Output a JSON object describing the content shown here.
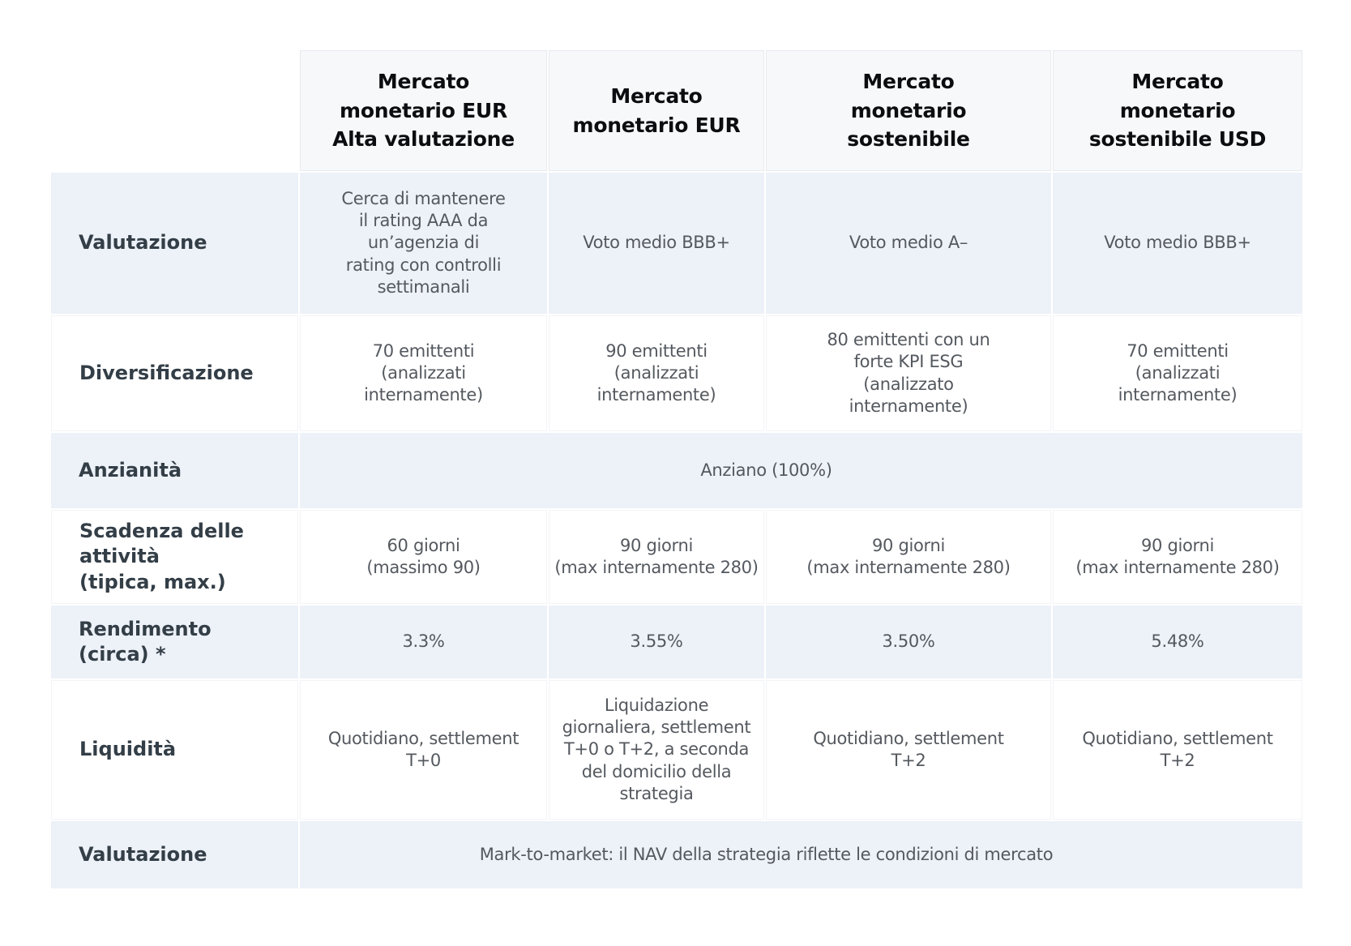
{
  "table": {
    "columns": [
      {
        "title": "Mercato\nmonetario EUR\nAlta valutazione"
      },
      {
        "title": "Mercato\nmonetario EUR"
      },
      {
        "title": "Mercato\nmonetario\nsostenibile"
      },
      {
        "title": "Mercato\nmonetario\nsostenibile USD"
      }
    ],
    "rows": {
      "valutazione": {
        "label": "Valutazione",
        "values": [
          "Cerca di mantenere\nil rating AAA da\nun’agenzia di\nrating con controlli\nsettimanali",
          "Voto medio BBB+",
          "Voto medio A–",
          "Voto medio BBB+"
        ]
      },
      "diversificazione": {
        "label": "Diversificazione",
        "values": [
          "70 emittenti\n(analizzati\ninternamente)",
          "90 emittenti\n(analizzati\ninternamente)",
          "80 emittenti con un\nforte KPI ESG\n(analizzato\ninternamente)",
          "70 emittenti\n(analizzati\ninternamente)"
        ]
      },
      "anzianita": {
        "label": "Anzianità",
        "merged_value": "Anziano (100%)"
      },
      "scadenza": {
        "label": "Scadenza delle\nattività\n(tipica, max.)",
        "values": [
          "60 giorni\n(massimo 90)",
          "90 giorni\n(max internamente 280)",
          "90 giorni\n(max internamente 280)",
          "90 giorni\n(max internamente 280)"
        ]
      },
      "rendimento": {
        "label": "Rendimento\n(circa) *",
        "values": [
          "3.3%",
          "3.55%",
          "3.50%",
          "5.48%"
        ]
      },
      "liquidita": {
        "label": "Liquidità",
        "values": [
          "Quotidiano, settlement\nT+0",
          "Liquidazione\ngiornaliera, settlement\nT+0 o T+2, a seconda\ndel domicilio della\nstrategia",
          "Quotidiano, settlement\nT+2",
          "Quotidiano, settlement\nT+2"
        ]
      },
      "valutazione_metodo": {
        "label": "Valutazione",
        "merged_value": "Mark-to-market: il NAV della strategia riflette le condizioni di mercato"
      }
    },
    "colors": {
      "row_light_bg": "#edf1f8",
      "header_bg": "#f7f8fa",
      "header_text": "#0c0d10",
      "label_text": "#333e47",
      "value_text": "#54595f"
    }
  }
}
